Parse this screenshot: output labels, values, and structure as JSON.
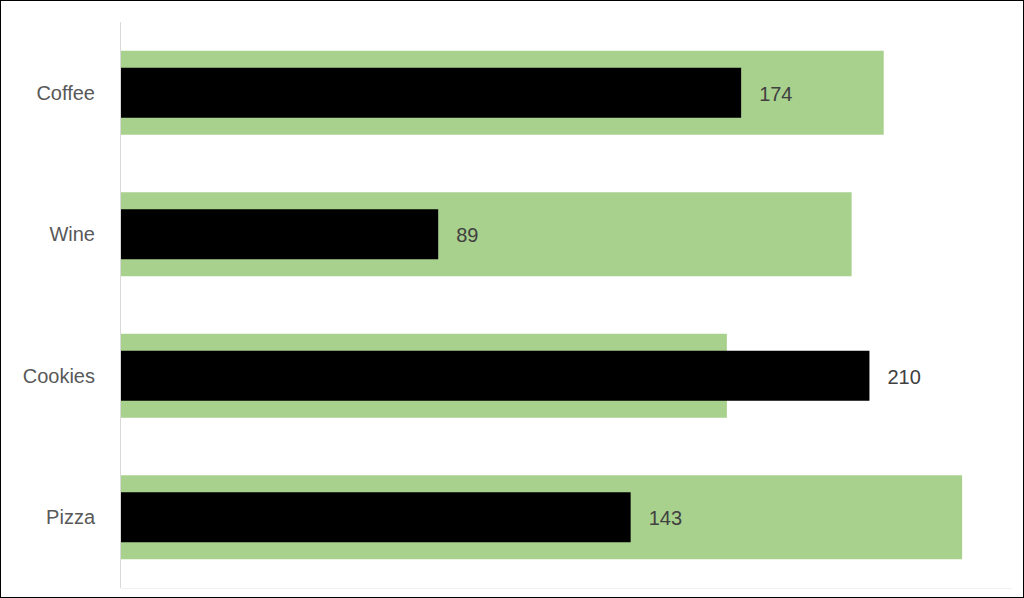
{
  "chart_data": {
    "type": "bar",
    "orientation": "horizontal",
    "categories": [
      "Coffee",
      "Wine",
      "Cookies",
      "Pizza"
    ],
    "xlim": [
      0,
      250
    ],
    "tick_labels": "y",
    "grid": false,
    "series": [
      {
        "color": "#a9d18e",
        "values": [
          214,
          205,
          170,
          236
        ]
      },
      {
        "color": "#000000",
        "values": [
          174,
          89,
          210,
          143
        ],
        "data_labels": true
      }
    ]
  }
}
